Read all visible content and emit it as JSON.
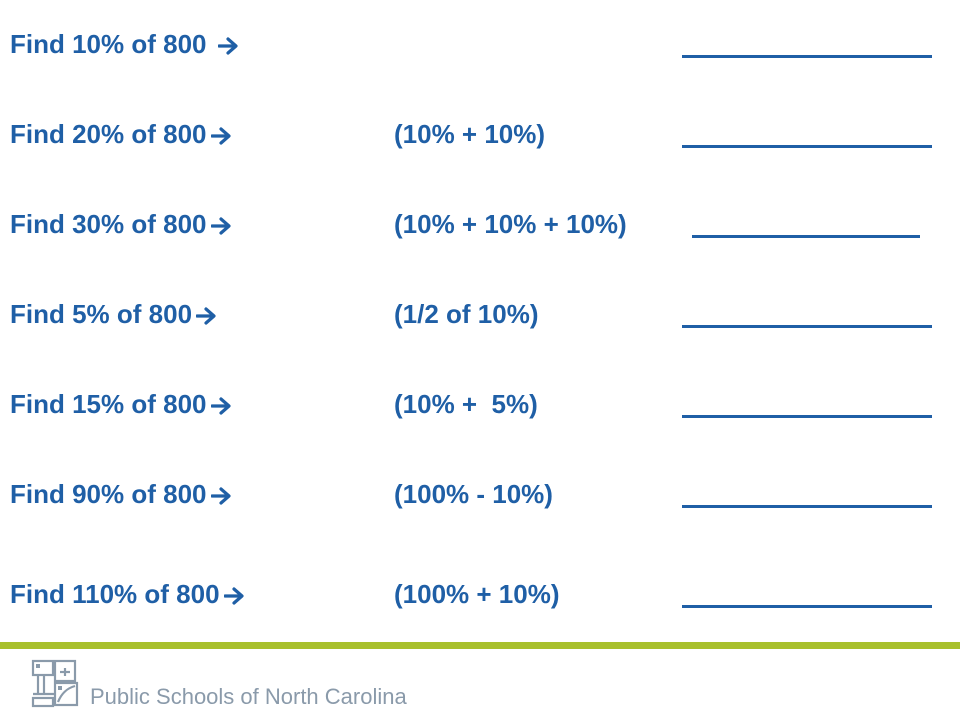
{
  "colors": {
    "text": "#1f5fa6",
    "accent_rule": "#a8c02c",
    "footer_text": "#8a9aaa"
  },
  "rows": [
    {
      "problem": "Find 10% of 800 ",
      "hint": ""
    },
    {
      "problem": "Find 20% of 800",
      "hint": "(10% + 10%)"
    },
    {
      "problem": "Find 30% of 800",
      "hint": "(10% + 10% + 10%)"
    },
    {
      "problem": "Find 5% of 800",
      "hint": "(1/2 of 10%)"
    },
    {
      "problem": "Find 15% of 800",
      "hint": "(10% +  5%)"
    },
    {
      "problem": "Find 90% of 800",
      "hint": "(100% - 10%)"
    },
    {
      "problem": "Find 110% of 800",
      "hint": "(100% + 10%)"
    }
  ],
  "footer": {
    "org_name": "Public Schools of North Carolina",
    "logo_icon": "nc-public-schools-logo-icon"
  }
}
